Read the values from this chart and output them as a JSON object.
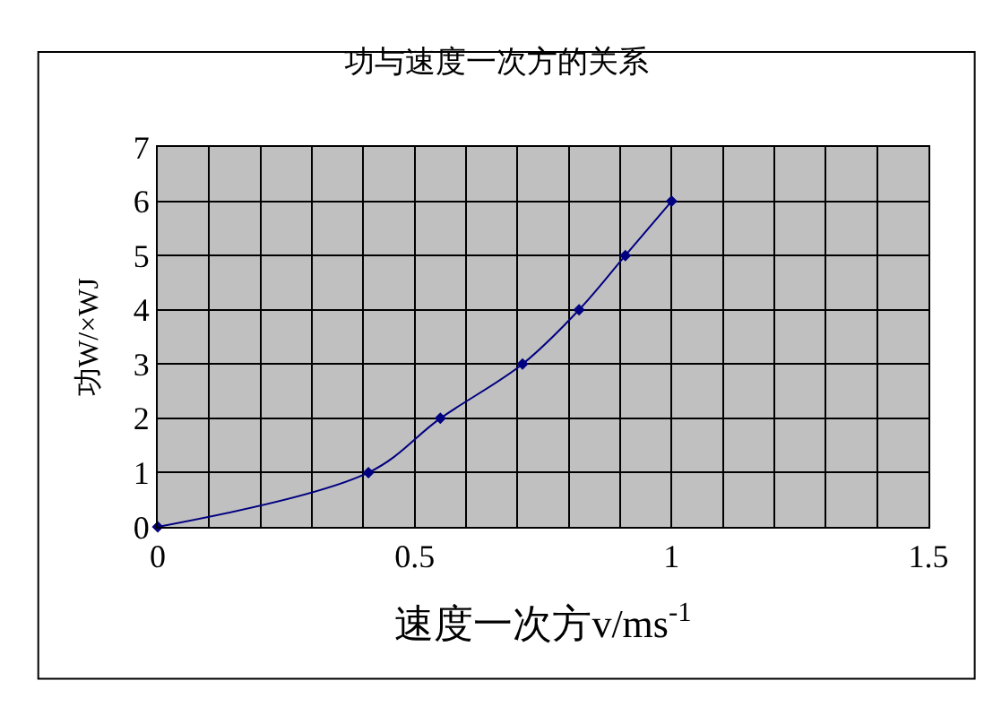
{
  "chart_data": {
    "type": "line",
    "title": "功与速度一次方的关系",
    "xlabel": "速度一次方v/ms$^{-1}$",
    "ylabel": "功W/×WJ",
    "x": [
      0,
      0.41,
      0.55,
      0.71,
      0.82,
      0.91,
      1
    ],
    "series": [
      {
        "color": "#000080",
        "values": [
          0,
          1,
          2,
          3,
          4,
          5,
          6
        ]
      }
    ],
    "xlim": [
      0,
      1.5
    ],
    "ylim": [
      0,
      7
    ],
    "xticks": [
      0,
      {
        "value": 0.1,
        "label": null
      },
      {
        "value": 0.2,
        "label": null
      },
      {
        "value": 0.3,
        "label": null
      },
      {
        "value": 0.4,
        "label": null
      },
      0.5,
      {
        "value": 0.6,
        "label": null
      },
      {
        "value": 0.7,
        "label": null
      },
      {
        "value": 0.8,
        "label": null
      },
      {
        "value": 0.9,
        "label": null
      },
      1,
      {
        "value": 1.1,
        "label": null
      },
      {
        "value": 1.2,
        "label": null
      },
      {
        "value": 1.3,
        "label": null
      },
      {
        "value": 1.4,
        "label": null
      },
      1.5
    ],
    "yticks": [
      0,
      1,
      2,
      3,
      4,
      5,
      6,
      7
    ],
    "grid": true,
    "marker": "diamond",
    "line_style": "solid",
    "legend": false
  }
}
